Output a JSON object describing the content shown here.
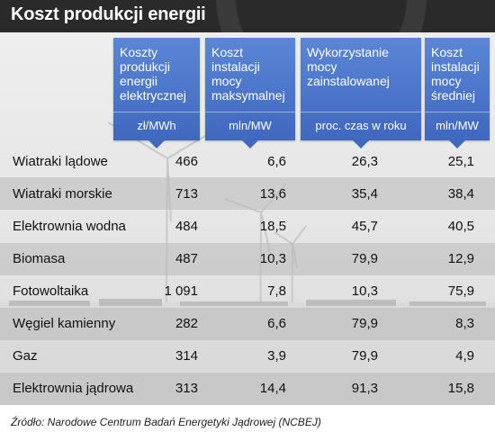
{
  "title": "Koszt produkcji energii",
  "source": "Źródło: Narodowe Centrum Badań Energetyki Jądrowej (NCBEJ)",
  "colors": {
    "header": "#4a74cc",
    "title_bar": "#2a2a2a"
  },
  "chart_data": {
    "type": "table",
    "columns": [
      {
        "label": "Koszty produkcji energii elektrycznej",
        "unit": "zł/MWh"
      },
      {
        "label": "Koszt instalacji mocy maksymalnej",
        "unit": "mln/MW"
      },
      {
        "label": "Wykorzystanie mocy zainstalowanej",
        "unit": "proc. czas w roku"
      },
      {
        "label": "Koszt instalacji mocy średniej",
        "unit": "mln/MW"
      }
    ],
    "rows": [
      {
        "name": "Wiatraki lądowe",
        "values": [
          "466",
          "6,6",
          "26,3",
          "25,1"
        ]
      },
      {
        "name": "Wiatraki morskie",
        "values": [
          "713",
          "13,6",
          "35,4",
          "38,4"
        ]
      },
      {
        "name": "Elektrownia wodna",
        "values": [
          "484",
          "18,5",
          "45,7",
          "40,5"
        ]
      },
      {
        "name": "Biomasa",
        "values": [
          "487",
          "10,3",
          "79,9",
          "12,9"
        ]
      },
      {
        "name": "Fotowoltaika",
        "values": [
          "1 091",
          "7,8",
          "10,3",
          "75,9"
        ]
      },
      {
        "name": "Węgiel kamienny",
        "values": [
          "282",
          "6,6",
          "79,9",
          "8,3"
        ]
      },
      {
        "name": "Gaz",
        "values": [
          "314",
          "3,9",
          "79,9",
          "4,9"
        ]
      },
      {
        "name": "Elektrownia jądrowa",
        "values": [
          "313",
          "14,4",
          "91,3",
          "15,8"
        ]
      }
    ]
  }
}
